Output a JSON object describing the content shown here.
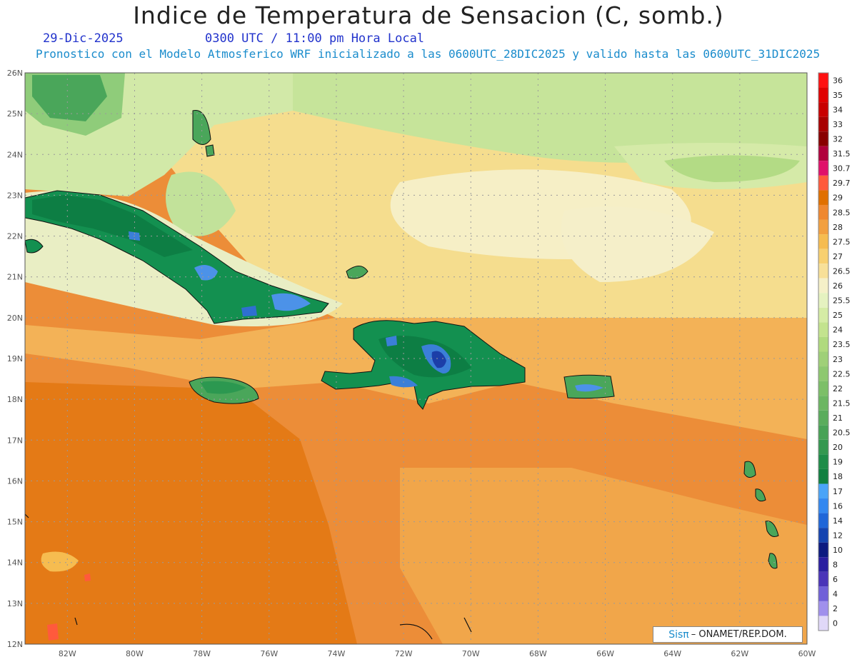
{
  "title": "Indice de Temperatura de Sensacion (C, somb.)",
  "date_label": "29-Dic-2025",
  "time_label": "0300 UTC / 11:00 pm Hora Local",
  "model_info": "Pronostico con el Modelo Atmosferico WRF inicializado a las 0600UTC_28DIC2025 y valido hasta las  0600UTC_31DIC2025",
  "credit": {
    "brand": "Sisπ",
    "text": "– ONAMET/REP.DOM."
  },
  "lat_labels": [
    "26N",
    "25N",
    "24N",
    "23N",
    "22N",
    "21N",
    "20N",
    "19N",
    "18N",
    "17N",
    "16N",
    "15N",
    "14N",
    "13N",
    "12N"
  ],
  "lon_labels": [
    "82W",
    "80W",
    "78W",
    "76W",
    "74W",
    "72W",
    "70W",
    "68W",
    "66W",
    "64W",
    "62W",
    "60W"
  ],
  "colorbar": {
    "levels": [
      "36",
      "35",
      "34",
      "33",
      "32",
      "31.5",
      "30.7",
      "29.7",
      "29",
      "28.5",
      "28",
      "27.5",
      "27",
      "26.5",
      "26",
      "25.5",
      "25",
      "24",
      "23.5",
      "23",
      "22.5",
      "22",
      "21.5",
      "21",
      "20.5",
      "20",
      "19",
      "18",
      "17",
      "16",
      "14",
      "12",
      "10",
      "8",
      "6",
      "4",
      "2",
      "0"
    ],
    "colors": [
      "#ff1010",
      "#e00000",
      "#c80000",
      "#a80000",
      "#880000",
      "#b0003c",
      "#e0106a",
      "#ff5a3c",
      "#e07000",
      "#ef8830",
      "#f2a040",
      "#f6bc50",
      "#f8d070",
      "#f8e098",
      "#f5f0c8",
      "#e5f2c0",
      "#d5eca5",
      "#c3e38e",
      "#b0da7e",
      "#9fd078",
      "#8ec870",
      "#7cbf68",
      "#6cb662",
      "#5aac5c",
      "#48a256",
      "#349850",
      "#1e8c48",
      "#108040",
      "#4aa4f8",
      "#3388f0",
      "#1f66d8",
      "#1444b0",
      "#0c1a80",
      "#2a1ea0",
      "#4a34b8",
      "#7060d8",
      "#a090ec",
      "#e0d8f8"
    ]
  }
}
